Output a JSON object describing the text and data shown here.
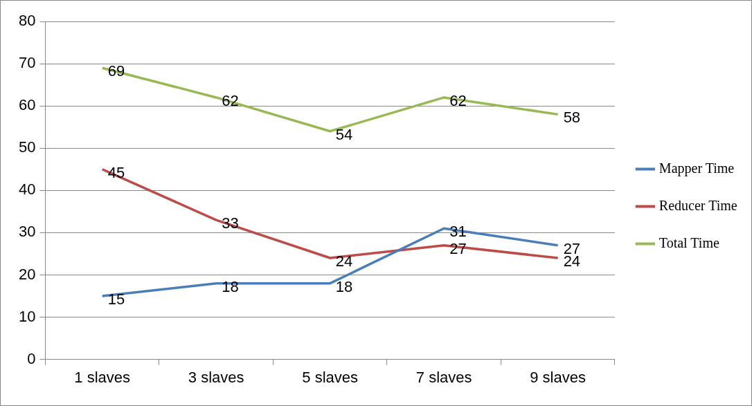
{
  "chart_data": {
    "type": "line",
    "categories": [
      "1 slaves",
      "3 slaves",
      "5 slaves",
      "7 slaves",
      "9 slaves"
    ],
    "series": [
      {
        "name": "Mapper Time",
        "color": "#4a7ebb",
        "values": [
          15,
          18,
          18,
          31,
          27
        ]
      },
      {
        "name": "Reducer Time",
        "color": "#be4b48",
        "values": [
          45,
          33,
          24,
          27,
          24
        ]
      },
      {
        "name": "Total Time",
        "color": "#98b954",
        "values": [
          69,
          62,
          54,
          62,
          58
        ]
      }
    ],
    "ylim": [
      0,
      80
    ],
    "yticks": [
      0,
      10,
      20,
      30,
      40,
      50,
      60,
      70,
      80
    ],
    "grid": "y",
    "legend": "right",
    "marker": "none",
    "line_style": "solid",
    "data_labels": true
  }
}
